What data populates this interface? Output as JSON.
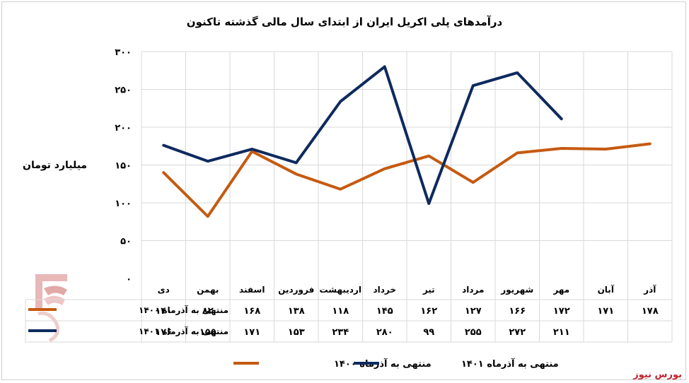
{
  "chart_data": {
    "type": "line",
    "title": "درآمدهای پلی اکریل ایران از ابتدای سال مالی گذشته تاکنون",
    "ylabel": "میلیارد تومان",
    "ylim": [
      0,
      300
    ],
    "yticks": [
      0,
      50,
      100,
      150,
      200,
      250,
      300
    ],
    "ytick_labels": [
      "۰",
      "۵۰",
      "۱۰۰",
      "۱۵۰",
      "۲۰۰",
      "۲۵۰",
      "۳۰۰"
    ],
    "categories": [
      "دی",
      "بهمن",
      "اسفند",
      "فروردین",
      "اردیبهشت",
      "خرداد",
      "تیر",
      "مرداد",
      "شهریور",
      "مهر",
      "آبان",
      "آذر"
    ],
    "series": [
      {
        "name": "منتهی به آذرماه ۱۴۰۰",
        "color": "#c55a11",
        "values": [
          140,
          82,
          168,
          138,
          118,
          145,
          162,
          127,
          166,
          172,
          171,
          178
        ],
        "value_labels": [
          "۱۴۰",
          "۸۲",
          "۱۶۸",
          "۱۳۸",
          "۱۱۸",
          "۱۴۵",
          "۱۶۲",
          "۱۲۷",
          "۱۶۶",
          "۱۷۲",
          "۱۷۱",
          "۱۷۸"
        ]
      },
      {
        "name": "منتهی به آذرماه ۱۴۰۱",
        "color": "#0e2a5e",
        "values": [
          176,
          155,
          171,
          153,
          234,
          280,
          99,
          255,
          272,
          211,
          null,
          null
        ],
        "value_labels": [
          "۱۷۶",
          "۱۵۵",
          "۱۷۱",
          "۱۵۳",
          "۲۳۴",
          "۲۸۰",
          "۹۹",
          "۲۵۵",
          "۲۷۲",
          "۲۱۱",
          "",
          ""
        ]
      }
    ],
    "grid": true,
    "legend": "bottom"
  },
  "brand": "بورس نیوز"
}
